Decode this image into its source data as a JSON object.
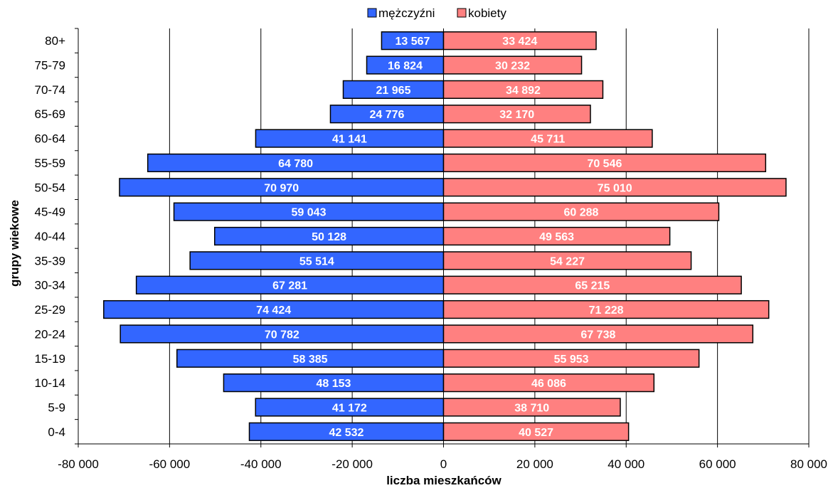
{
  "chart_data": {
    "type": "bar",
    "orientation": "horizontal",
    "subtype": "population-pyramid",
    "xlabel": "liczba mieszkańców",
    "ylabel": "grupy wiekowe",
    "xlim": [
      -80000,
      80000
    ],
    "x_ticks": [
      -80000,
      -60000,
      -40000,
      -20000,
      0,
      20000,
      40000,
      60000,
      80000
    ],
    "x_tick_labels": [
      "-80 000",
      "-60 000",
      "-40 000",
      "-20 000",
      "0",
      "20 000",
      "40 000",
      "60 000",
      "80 000"
    ],
    "grid": "vertical",
    "legend": "top-center",
    "categories": [
      "80+",
      "75-79",
      "70-74",
      "65-69",
      "60-64",
      "55-59",
      "50-54",
      "45-49",
      "40-44",
      "35-39",
      "30-34",
      "25-29",
      "20-24",
      "15-19",
      "10-14",
      "5-9",
      "0-4"
    ],
    "series": [
      {
        "name": "mężczyźni",
        "color": "#3366ff",
        "values": [
          -13567,
          -16824,
          -21965,
          -24776,
          -41141,
          -64780,
          -70970,
          -59043,
          -50128,
          -55514,
          -67281,
          -74424,
          -70782,
          -58385,
          -48153,
          -41172,
          -42532
        ],
        "labels": [
          "13 567",
          "16 824",
          "21 965",
          "24 776",
          "41 141",
          "64 780",
          "70 970",
          "59 043",
          "50 128",
          "55 514",
          "67 281",
          "74 424",
          "70 782",
          "58 385",
          "48 153",
          "41 172",
          "42 532"
        ]
      },
      {
        "name": "kobiety",
        "color": "#ff8080",
        "values": [
          33424,
          30232,
          34892,
          32170,
          45711,
          70546,
          75010,
          60288,
          49563,
          54227,
          65215,
          71228,
          67738,
          55953,
          46086,
          38710,
          40527
        ],
        "labels": [
          "33 424",
          "30 232",
          "34 892",
          "32 170",
          "45 711",
          "70 546",
          "75 010",
          "60 288",
          "49 563",
          "54 227",
          "65 215",
          "71 228",
          "67 738",
          "55 953",
          "46 086",
          "38 710",
          "40 527"
        ]
      }
    ]
  }
}
